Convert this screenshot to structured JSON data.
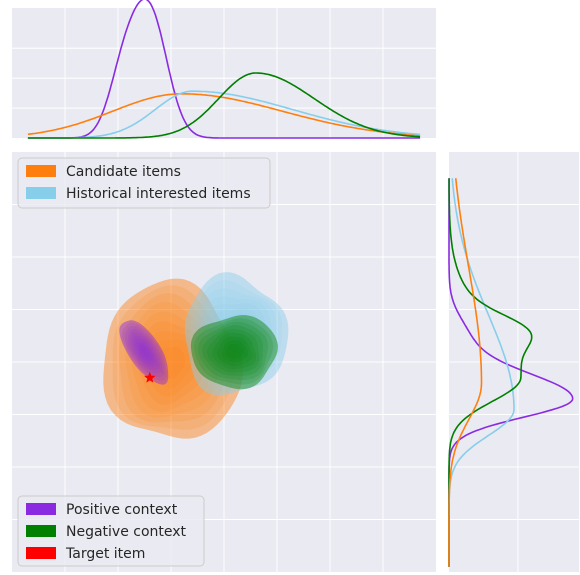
{
  "chart_data": {
    "type": "joint-kde",
    "title": "",
    "xlabel": "",
    "ylabel": "",
    "grid": true,
    "axis_range": {
      "x": [
        -4,
        4
      ],
      "y": [
        -4,
        4
      ]
    },
    "legends": [
      {
        "placement": "upper-left",
        "entries": [
          "Candidate items",
          "Historical interested items"
        ]
      },
      {
        "placement": "lower-left",
        "entries": [
          "Positive context",
          "Negative context",
          "Target item"
        ]
      }
    ],
    "series": [
      {
        "name": "Candidate items",
        "color": "#ff7f0e",
        "kind": "filled-density",
        "center": [
          -1.0,
          0.0
        ],
        "spread": [
          1.3,
          1.5
        ],
        "rotation": 0
      },
      {
        "name": "Historical interested items",
        "color": "#87ceeb",
        "kind": "filled-density",
        "center": [
          0.2,
          0.5
        ],
        "spread": [
          1.0,
          1.1
        ],
        "rotation": 0
      },
      {
        "name": "Positive context",
        "color": "#8a2be2",
        "kind": "filled-density",
        "center": [
          -1.5,
          0.2
        ],
        "spread": [
          0.3,
          0.7
        ],
        "rotation": -0.6
      },
      {
        "name": "Negative context",
        "color": "#008000",
        "kind": "filled-density",
        "center": [
          0.2,
          0.2
        ],
        "spread": [
          0.8,
          0.7
        ],
        "rotation": 0
      },
      {
        "name": "Target item",
        "color": "#ff0000",
        "kind": "point",
        "x": -1.4,
        "y": -0.3
      }
    ],
    "marginal_x": [
      {
        "name": "Positive context",
        "color": "#8a2be2",
        "peak_x": -1.4,
        "peak_density": 0.95
      },
      {
        "name": "Candidate items",
        "color": "#ff7f0e",
        "peak_x": -0.8,
        "peak_density": 0.34
      },
      {
        "name": "Historical interested items",
        "color": "#87ceeb",
        "peak_x": -0.6,
        "peak_density": 0.36
      },
      {
        "name": "Negative context",
        "color": "#008000",
        "peak_x": 0.6,
        "peak_density": 0.5
      }
    ],
    "marginal_y": [
      {
        "name": "Positive context",
        "color": "#8a2be2",
        "peak_y": -0.7,
        "peak_density": 0.95
      },
      {
        "name": "Historical interested items",
        "color": "#87ceeb",
        "peak_y": -0.9,
        "peak_density": 0.5
      },
      {
        "name": "Negative context",
        "color": "#008000",
        "peak_y": -0.3,
        "peak_density": 0.55
      },
      {
        "name": "Candidate items",
        "color": "#ff7f0e",
        "peak_y": -0.4,
        "peak_density": 0.25
      }
    ]
  }
}
